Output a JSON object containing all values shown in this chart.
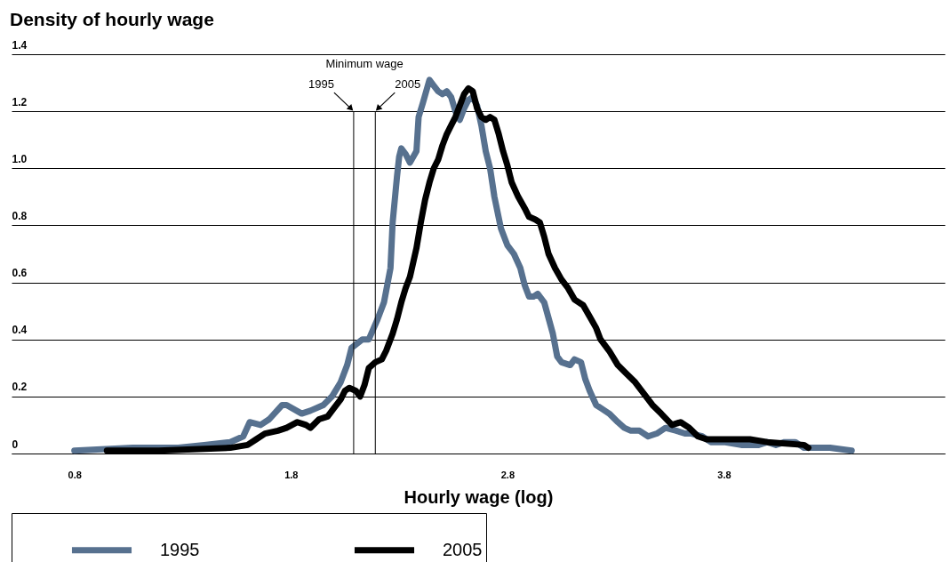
{
  "chart_data": {
    "type": "line",
    "title": "Density of hourly wage",
    "xlabel": "Hourly wage (log)",
    "xlim": [
      0.51,
      4.82
    ],
    "xticks": [
      0.8,
      1.8,
      2.8,
      3.8
    ],
    "ylim": [
      0,
      1.4
    ],
    "yticks": [
      0,
      0.2,
      0.4,
      0.6,
      0.8,
      {
        "value": 1,
        "label": "1.0"
      },
      1.2,
      1.4
    ],
    "grid": "y",
    "legend": "bottom",
    "line_style": "solid",
    "marker": "none",
    "annotations": [
      "Minimum wage",
      {
        "text": "1995",
        "x": 2.09,
        "y": 1.2
      },
      {
        "text": "2005",
        "x": 2.19,
        "y": 1.2
      }
    ],
    "ref_lines": [
      {
        "axis": "x",
        "value": 2.09,
        "color": "#000000"
      },
      {
        "axis": "x",
        "value": 2.19,
        "color": "#000000"
      }
    ],
    "series": [
      {
        "name": "1995",
        "color": "#57718f",
        "x": [
          0.8,
          1.07,
          1.28,
          1.4,
          1.52,
          1.58,
          1.61,
          1.66,
          1.7,
          1.76,
          1.78,
          1.85,
          1.89,
          1.95,
          1.99,
          2.03,
          2.06,
          2.08,
          2.13,
          2.16,
          2.2,
          2.23,
          2.26,
          2.27,
          2.29,
          2.3,
          2.31,
          2.33,
          2.35,
          2.38,
          2.39,
          2.41,
          2.44,
          2.46,
          2.48,
          2.5,
          2.52,
          2.54,
          2.56,
          2.58,
          2.6,
          2.62,
          2.64,
          2.66,
          2.68,
          2.7,
          2.72,
          2.74,
          2.77,
          2.8,
          2.83,
          2.86,
          2.88,
          2.9,
          2.92,
          2.94,
          2.97,
          3.01,
          3.03,
          3.05,
          3.09,
          3.11,
          3.14,
          3.16,
          3.18,
          3.21,
          3.23,
          3.27,
          3.31,
          3.34,
          3.37,
          3.41,
          3.45,
          3.49,
          3.53,
          3.58,
          3.62,
          3.65,
          3.7,
          3.74,
          3.8,
          3.88,
          3.96,
          4.0,
          4.04,
          4.08,
          4.13,
          4.17,
          4.29,
          4.39
        ],
        "values": [
          0.01,
          0.02,
          0.02,
          0.03,
          0.04,
          0.06,
          0.11,
          0.1,
          0.12,
          0.17,
          0.17,
          0.14,
          0.15,
          0.17,
          0.2,
          0.25,
          0.31,
          0.37,
          0.4,
          0.4,
          0.47,
          0.53,
          0.65,
          0.81,
          0.97,
          1.04,
          1.07,
          1.05,
          1.02,
          1.06,
          1.18,
          1.23,
          1.31,
          1.29,
          1.27,
          1.26,
          1.27,
          1.25,
          1.2,
          1.17,
          1.21,
          1.24,
          1.25,
          1.22,
          1.15,
          1.06,
          1.0,
          0.9,
          0.79,
          0.73,
          0.7,
          0.65,
          0.59,
          0.55,
          0.55,
          0.56,
          0.53,
          0.42,
          0.34,
          0.32,
          0.31,
          0.33,
          0.32,
          0.26,
          0.22,
          0.17,
          0.16,
          0.14,
          0.11,
          0.09,
          0.08,
          0.08,
          0.06,
          0.07,
          0.09,
          0.08,
          0.07,
          0.07,
          0.06,
          0.04,
          0.04,
          0.03,
          0.03,
          0.04,
          0.03,
          0.04,
          0.04,
          0.02,
          0.02,
          0.01
        ]
      },
      {
        "name": "2005",
        "color": "#000000",
        "x": [
          0.95,
          1.19,
          1.52,
          1.6,
          1.64,
          1.68,
          1.74,
          1.78,
          1.83,
          1.87,
          1.89,
          1.93,
          1.97,
          2.0,
          2.03,
          2.05,
          2.07,
          2.1,
          2.12,
          2.14,
          2.16,
          2.19,
          2.22,
          2.24,
          2.27,
          2.29,
          2.31,
          2.33,
          2.35,
          2.38,
          2.4,
          2.42,
          2.44,
          2.46,
          2.48,
          2.5,
          2.52,
          2.54,
          2.56,
          2.58,
          2.6,
          2.62,
          2.64,
          2.66,
          2.68,
          2.7,
          2.72,
          2.74,
          2.76,
          2.78,
          2.8,
          2.82,
          2.85,
          2.88,
          2.9,
          2.93,
          2.95,
          2.97,
          2.99,
          3.02,
          3.05,
          3.08,
          3.11,
          3.15,
          3.18,
          3.21,
          3.23,
          3.27,
          3.31,
          3.35,
          3.39,
          3.43,
          3.47,
          3.51,
          3.56,
          3.6,
          3.64,
          3.68,
          3.72,
          3.92,
          4.0,
          4.17,
          4.19
        ],
        "values": [
          0.01,
          0.01,
          0.02,
          0.03,
          0.05,
          0.07,
          0.08,
          0.09,
          0.11,
          0.1,
          0.09,
          0.12,
          0.13,
          0.16,
          0.19,
          0.22,
          0.23,
          0.22,
          0.2,
          0.24,
          0.3,
          0.32,
          0.33,
          0.36,
          0.42,
          0.47,
          0.53,
          0.58,
          0.62,
          0.72,
          0.81,
          0.89,
          0.95,
          1.0,
          1.03,
          1.08,
          1.12,
          1.15,
          1.18,
          1.22,
          1.26,
          1.28,
          1.27,
          1.21,
          1.18,
          1.17,
          1.18,
          1.17,
          1.12,
          1.06,
          1.01,
          0.95,
          0.9,
          0.86,
          0.83,
          0.82,
          0.81,
          0.76,
          0.7,
          0.65,
          0.61,
          0.58,
          0.54,
          0.52,
          0.48,
          0.44,
          0.4,
          0.36,
          0.31,
          0.28,
          0.25,
          0.21,
          0.17,
          0.14,
          0.1,
          0.11,
          0.09,
          0.06,
          0.05,
          0.05,
          0.04,
          0.03,
          0.02
        ]
      }
    ]
  }
}
